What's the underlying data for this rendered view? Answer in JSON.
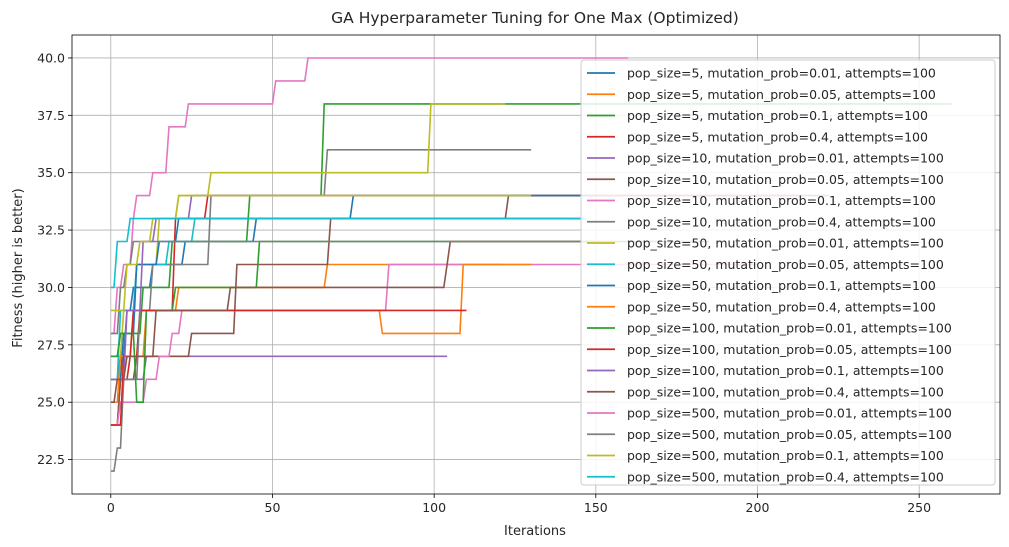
{
  "chart_data": {
    "type": "line",
    "title": "GA Hyperparameter Tuning for One Max (Optimized)",
    "xlabel": "Iterations",
    "ylabel": "Fitness (higher is better)",
    "xlim": [
      -12,
      275
    ],
    "ylim": [
      21,
      41
    ],
    "xticks": [
      0,
      50,
      100,
      150,
      200,
      250
    ],
    "yticks": [
      22.5,
      25.0,
      27.5,
      30.0,
      32.5,
      35.0,
      37.5,
      40.0
    ],
    "ytick_labels": [
      "22.5",
      "25.0",
      "27.5",
      "30.0",
      "32.5",
      "35.0",
      "37.5",
      "40.0"
    ],
    "grid": true,
    "legend_position": "right",
    "series": [
      {
        "name": "pop_size=5, mutation_prob=0.01, attempts=100",
        "color": "#1f77b4",
        "steps": [
          [
            0,
            26
          ],
          [
            2,
            27
          ],
          [
            4,
            29
          ],
          [
            6,
            30
          ],
          [
            12,
            31
          ],
          [
            22,
            32
          ],
          [
            44,
            33
          ],
          [
            147,
            33
          ]
        ]
      },
      {
        "name": "pop_size=5, mutation_prob=0.05, attempts=100",
        "color": "#ff7f0e",
        "steps": [
          [
            0,
            26
          ],
          [
            3,
            27
          ],
          [
            10,
            29
          ],
          [
            20,
            30
          ],
          [
            66,
            31
          ],
          [
            121,
            31
          ]
        ]
      },
      {
        "name": "pop_size=5, mutation_prob=0.1, attempts=100",
        "color": "#2ca02c",
        "steps": [
          [
            0,
            27
          ],
          [
            2,
            28
          ],
          [
            9,
            30
          ],
          [
            18,
            32
          ],
          [
            42,
            34
          ],
          [
            65,
            38
          ],
          [
            260,
            38
          ]
        ]
      },
      {
        "name": "pop_size=5, mutation_prob=0.4, attempts=100",
        "color": "#d62728",
        "steps": [
          [
            0,
            24
          ],
          [
            2,
            26
          ],
          [
            5,
            27
          ],
          [
            8,
            29
          ],
          [
            19,
            33
          ],
          [
            29,
            34
          ],
          [
            215,
            34
          ]
        ]
      },
      {
        "name": "pop_size=10, mutation_prob=0.01, attempts=100",
        "color": "#9467bd",
        "steps": [
          [
            0,
            24
          ],
          [
            3,
            26
          ],
          [
            10,
            27
          ],
          [
            104,
            27
          ]
        ]
      },
      {
        "name": "pop_size=10, mutation_prob=0.05, attempts=100",
        "color": "#8c564b",
        "steps": [
          [
            0,
            24
          ],
          [
            2,
            26
          ],
          [
            7,
            27
          ],
          [
            24,
            28
          ],
          [
            38,
            31
          ],
          [
            67,
            33
          ],
          [
            122,
            34
          ],
          [
            222,
            34
          ]
        ]
      },
      {
        "name": "pop_size=10, mutation_prob=0.1, attempts=100",
        "color": "#e377c2",
        "steps": [
          [
            0,
            24
          ],
          [
            2,
            25
          ],
          [
            10,
            26
          ],
          [
            14,
            27
          ],
          [
            18,
            28
          ],
          [
            21,
            29
          ],
          [
            85,
            31
          ],
          [
            200,
            31
          ]
        ]
      },
      {
        "name": "pop_size=10, mutation_prob=0.4, attempts=100",
        "color": "#7f7f7f",
        "steps": [
          [
            0,
            22
          ],
          [
            1,
            23
          ],
          [
            3,
            26
          ],
          [
            8,
            29
          ],
          [
            12,
            31
          ],
          [
            30,
            34
          ],
          [
            66,
            36
          ],
          [
            130,
            36
          ]
        ]
      },
      {
        "name": "pop_size=50, mutation_prob=0.01, attempts=100",
        "color": "#bcbd22",
        "steps": [
          [
            0,
            27
          ],
          [
            3,
            29
          ],
          [
            7,
            31
          ],
          [
            14,
            33
          ],
          [
            20,
            34
          ],
          [
            30,
            35
          ],
          [
            98,
            38
          ],
          [
            122,
            35
          ]
        ]
      },
      {
        "name": "pop_size=50, mutation_prob=0.05, attempts=100",
        "color": "#17becf",
        "steps": [
          [
            0,
            26
          ],
          [
            2,
            29
          ],
          [
            7,
            31
          ],
          [
            17,
            32
          ],
          [
            25,
            33
          ],
          [
            82,
            33
          ],
          [
            147,
            33
          ]
        ]
      },
      {
        "name": "pop_size=50, mutation_prob=0.1, attempts=100",
        "color": "#1f77b4",
        "steps": [
          [
            0,
            26
          ],
          [
            3,
            28
          ],
          [
            7,
            31
          ],
          [
            14,
            32
          ],
          [
            20,
            33
          ],
          [
            74,
            34
          ],
          [
            147,
            34
          ]
        ]
      },
      {
        "name": "pop_size=50, mutation_prob=0.4, attempts=100",
        "color": "#ff7f0e",
        "steps": [
          [
            0,
            25
          ],
          [
            2,
            27
          ],
          [
            6,
            29
          ],
          [
            83,
            28
          ],
          [
            108,
            31
          ],
          [
            130,
            31
          ]
        ]
      },
      {
        "name": "pop_size=100, mutation_prob=0.01, attempts=100",
        "color": "#2ca02c",
        "steps": [
          [
            0,
            27
          ],
          [
            2,
            28
          ],
          [
            7,
            25
          ],
          [
            10,
            29
          ],
          [
            19,
            30
          ],
          [
            45,
            32
          ],
          [
            91,
            32
          ],
          [
            150,
            32
          ]
        ]
      },
      {
        "name": "pop_size=100, mutation_prob=0.05, attempts=100",
        "color": "#d62728",
        "steps": [
          [
            0,
            24
          ],
          [
            3,
            27
          ],
          [
            6,
            29
          ],
          [
            110,
            29
          ]
        ]
      },
      {
        "name": "pop_size=100, mutation_prob=0.1, attempts=100",
        "color": "#9467bd",
        "steps": [
          [
            0,
            26
          ],
          [
            4,
            29
          ],
          [
            9,
            32
          ],
          [
            13,
            33
          ],
          [
            24,
            34
          ],
          [
            120,
            34
          ]
        ]
      },
      {
        "name": "pop_size=100, mutation_prob=0.4, attempts=100",
        "color": "#8c564b",
        "steps": [
          [
            0,
            25
          ],
          [
            1,
            26
          ],
          [
            4,
            27
          ],
          [
            13,
            29
          ],
          [
            36,
            30
          ],
          [
            103,
            31
          ],
          [
            104,
            32
          ],
          [
            185,
            32
          ]
        ]
      },
      {
        "name": "pop_size=500, mutation_prob=0.01, attempts=100",
        "color": "#e377c2",
        "steps": [
          [
            0,
            28
          ],
          [
            1,
            30
          ],
          [
            3,
            31
          ],
          [
            6,
            33
          ],
          [
            7,
            34
          ],
          [
            12,
            35
          ],
          [
            17,
            37
          ],
          [
            23,
            38
          ],
          [
            50,
            39
          ],
          [
            60,
            40
          ],
          [
            160,
            40
          ]
        ]
      },
      {
        "name": "pop_size=500, mutation_prob=0.05, attempts=100",
        "color": "#7f7f7f",
        "steps": [
          [
            0,
            28
          ],
          [
            2,
            30
          ],
          [
            4,
            31
          ],
          [
            6,
            32
          ],
          [
            110,
            32
          ],
          [
            150,
            32
          ]
        ]
      },
      {
        "name": "pop_size=500, mutation_prob=0.1, attempts=100",
        "color": "#bcbd22",
        "steps": [
          [
            0,
            29
          ],
          [
            4,
            31
          ],
          [
            8,
            32
          ],
          [
            12,
            33
          ],
          [
            20,
            34
          ],
          [
            130,
            35
          ]
        ]
      },
      {
        "name": "pop_size=500, mutation_prob=0.4, attempts=100",
        "color": "#17becf",
        "steps": [
          [
            0,
            30
          ],
          [
            1,
            32
          ],
          [
            5,
            33
          ],
          [
            140,
            33
          ]
        ]
      }
    ]
  }
}
